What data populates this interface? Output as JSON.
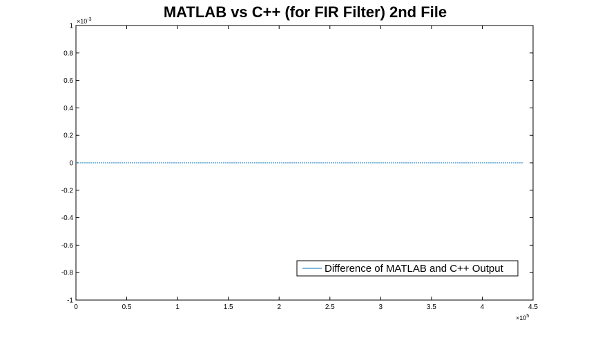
{
  "chart_data": {
    "type": "line",
    "title": "MATLAB vs C++ (for FIR Filter) 2nd File",
    "xlabel": "",
    "ylabel": "",
    "xlim": [
      0,
      450000
    ],
    "ylim": [
      -0.001,
      0.001
    ],
    "x_ticks": [
      0,
      50000,
      100000,
      150000,
      200000,
      250000,
      300000,
      350000,
      400000,
      450000
    ],
    "x_tick_labels": [
      "0",
      "0.5",
      "1",
      "1.5",
      "2",
      "2.5",
      "3",
      "3.5",
      "4",
      "4.5"
    ],
    "x_exponent": {
      "base": "×10",
      "power": "5"
    },
    "y_ticks": [
      -0.001,
      -0.0008,
      -0.0006,
      -0.0004,
      -0.0002,
      0,
      0.0002,
      0.0004,
      0.0006,
      0.0008,
      0.001
    ],
    "y_tick_labels": [
      "-1",
      "-0.8",
      "-0.6",
      "-0.4",
      "-0.2",
      "0",
      "0.2",
      "0.4",
      "0.6",
      "0.8",
      "1"
    ],
    "y_exponent": {
      "base": "×10",
      "power": "-3"
    },
    "grid": false,
    "legend_position": "bottom-right",
    "series": [
      {
        "name": "Difference of MATLAB and C++ Output",
        "color": "#0072BD",
        "x": [
          0,
          440000
        ],
        "y": [
          0,
          0
        ]
      }
    ]
  }
}
